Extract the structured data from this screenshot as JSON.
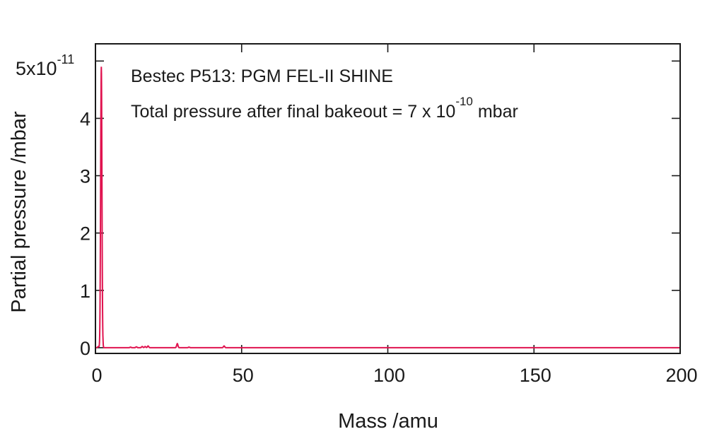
{
  "chart_data": {
    "type": "line",
    "title": "",
    "annotations": {
      "line1": "Bestec P513: PGM FEL-II SHINE",
      "line2_prefix": "Total pressure after final bakeout = 7 x 10",
      "line2_exponent": "-10",
      "line2_suffix": " mbar"
    },
    "xlabel": "Mass /amu",
    "ylabel": "Partial pressure /mbar",
    "y_multiplier": {
      "base": "5x10",
      "exponent": "-11"
    },
    "xlim": [
      0,
      200
    ],
    "ylim": [
      -0.1,
      5.3
    ],
    "xticks": [
      0,
      50,
      100,
      150,
      200
    ],
    "yticks": [
      0,
      1,
      2,
      3,
      4,
      5
    ],
    "ytick_labels": [
      "0",
      "1",
      "2",
      "3",
      "4",
      ""
    ],
    "grid": false,
    "line_color": "#e0134f",
    "series": [
      {
        "peaks": [
          {
            "mass": 1,
            "pressure": 0.02
          },
          {
            "mass": 2,
            "pressure": 4.9
          },
          {
            "mass": 12,
            "pressure": 0.01
          },
          {
            "mass": 14,
            "pressure": 0.015
          },
          {
            "mass": 16,
            "pressure": 0.02
          },
          {
            "mass": 17,
            "pressure": 0.02
          },
          {
            "mass": 18,
            "pressure": 0.03
          },
          {
            "mass": 28,
            "pressure": 0.07
          },
          {
            "mass": 32,
            "pressure": 0.01
          },
          {
            "mass": 44,
            "pressure": 0.03
          }
        ],
        "baseline": 0
      }
    ]
  }
}
